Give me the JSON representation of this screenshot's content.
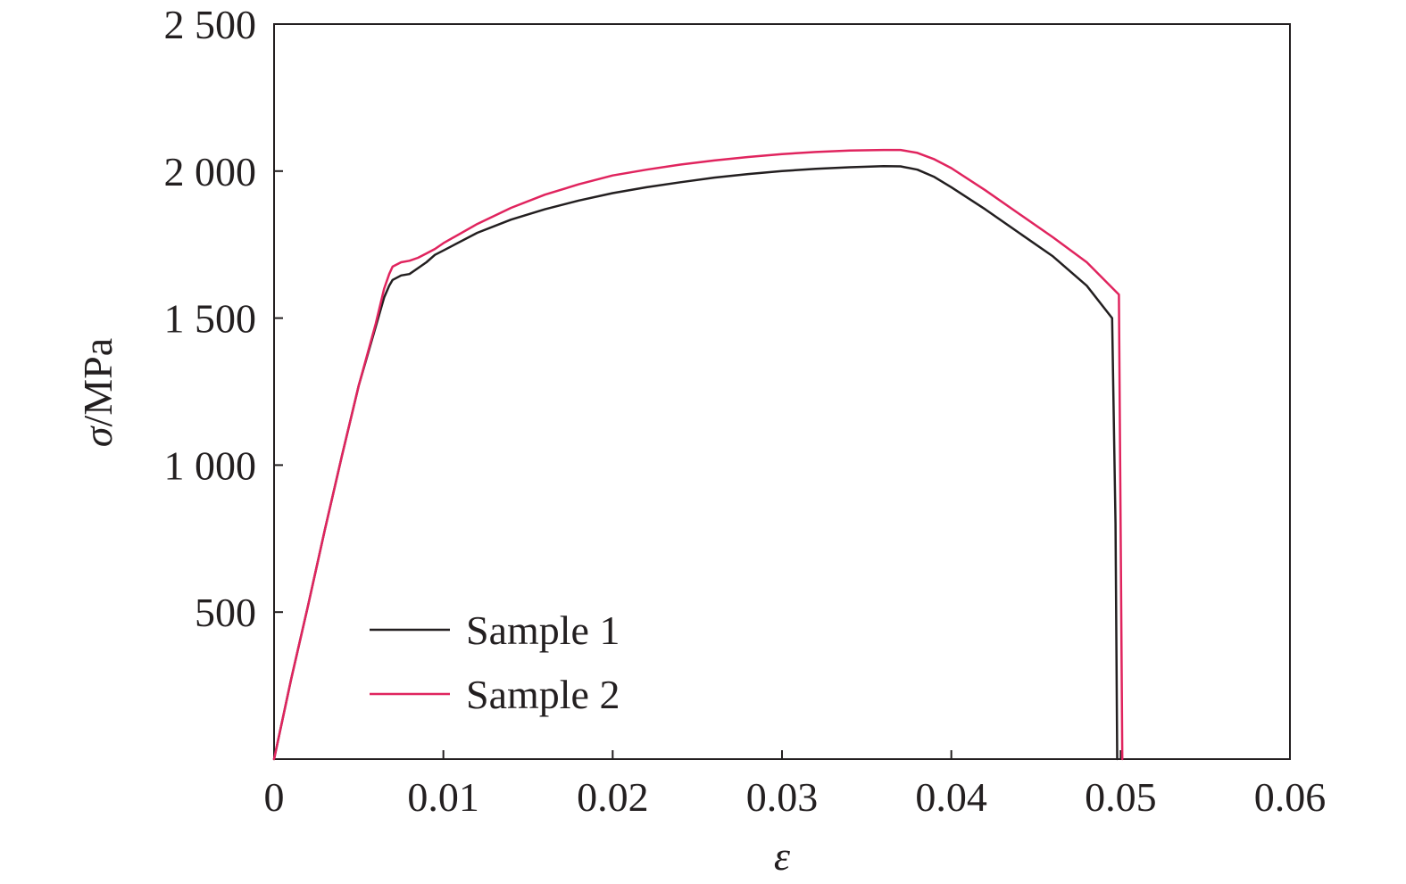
{
  "chart_data": {
    "type": "line",
    "xlabel": "ε",
    "ylabel_symbol": "σ",
    "ylabel_unit": "/MPa",
    "xlim": [
      0,
      0.06
    ],
    "ylim": [
      0,
      2500
    ],
    "xticks": [
      0,
      0.01,
      0.02,
      0.03,
      0.04,
      0.05,
      0.06
    ],
    "xtick_labels": [
      "0",
      "0.01",
      "0.02",
      "0.03",
      "0.04",
      "0.05",
      "0.06"
    ],
    "yticks": [
      500,
      1000,
      1500,
      2000,
      2500
    ],
    "ytick_labels": [
      "500",
      "1 000",
      "1 500",
      "2 000",
      "2 500"
    ],
    "grid": false,
    "legend_position": "bottom-left",
    "series": [
      {
        "name": "Sample 1",
        "color": "#231f20",
        "x": [
          0,
          0.001,
          0.002,
          0.003,
          0.004,
          0.005,
          0.006,
          0.0065,
          0.0068,
          0.007,
          0.0075,
          0.008,
          0.0085,
          0.009,
          0.0095,
          0.01,
          0.012,
          0.014,
          0.016,
          0.018,
          0.02,
          0.022,
          0.024,
          0.026,
          0.028,
          0.03,
          0.032,
          0.034,
          0.036,
          0.037,
          0.038,
          0.039,
          0.04,
          0.042,
          0.044,
          0.046,
          0.048,
          0.0495,
          0.0497,
          0.0498
        ],
        "y": [
          0,
          270,
          520,
          780,
          1030,
          1270,
          1470,
          1570,
          1610,
          1630,
          1645,
          1650,
          1670,
          1690,
          1715,
          1730,
          1790,
          1835,
          1870,
          1900,
          1925,
          1945,
          1962,
          1978,
          1990,
          2000,
          2008,
          2013,
          2017,
          2016,
          2005,
          1980,
          1945,
          1870,
          1790,
          1710,
          1610,
          1500,
          800,
          0
        ]
      },
      {
        "name": "Sample 2",
        "color": "#e0245e",
        "x": [
          0,
          0.001,
          0.002,
          0.003,
          0.004,
          0.005,
          0.006,
          0.0065,
          0.0068,
          0.007,
          0.0075,
          0.008,
          0.0085,
          0.009,
          0.0095,
          0.01,
          0.012,
          0.014,
          0.016,
          0.018,
          0.02,
          0.022,
          0.024,
          0.026,
          0.028,
          0.03,
          0.032,
          0.034,
          0.036,
          0.037,
          0.038,
          0.039,
          0.04,
          0.042,
          0.044,
          0.046,
          0.048,
          0.0499,
          0.05,
          0.0501
        ],
        "y": [
          0,
          270,
          520,
          780,
          1030,
          1270,
          1480,
          1600,
          1650,
          1675,
          1690,
          1695,
          1705,
          1720,
          1735,
          1755,
          1820,
          1875,
          1920,
          1955,
          1985,
          2005,
          2022,
          2036,
          2048,
          2058,
          2065,
          2070,
          2072,
          2072,
          2062,
          2040,
          2010,
          1935,
          1855,
          1775,
          1690,
          1580,
          800,
          0
        ]
      }
    ]
  }
}
